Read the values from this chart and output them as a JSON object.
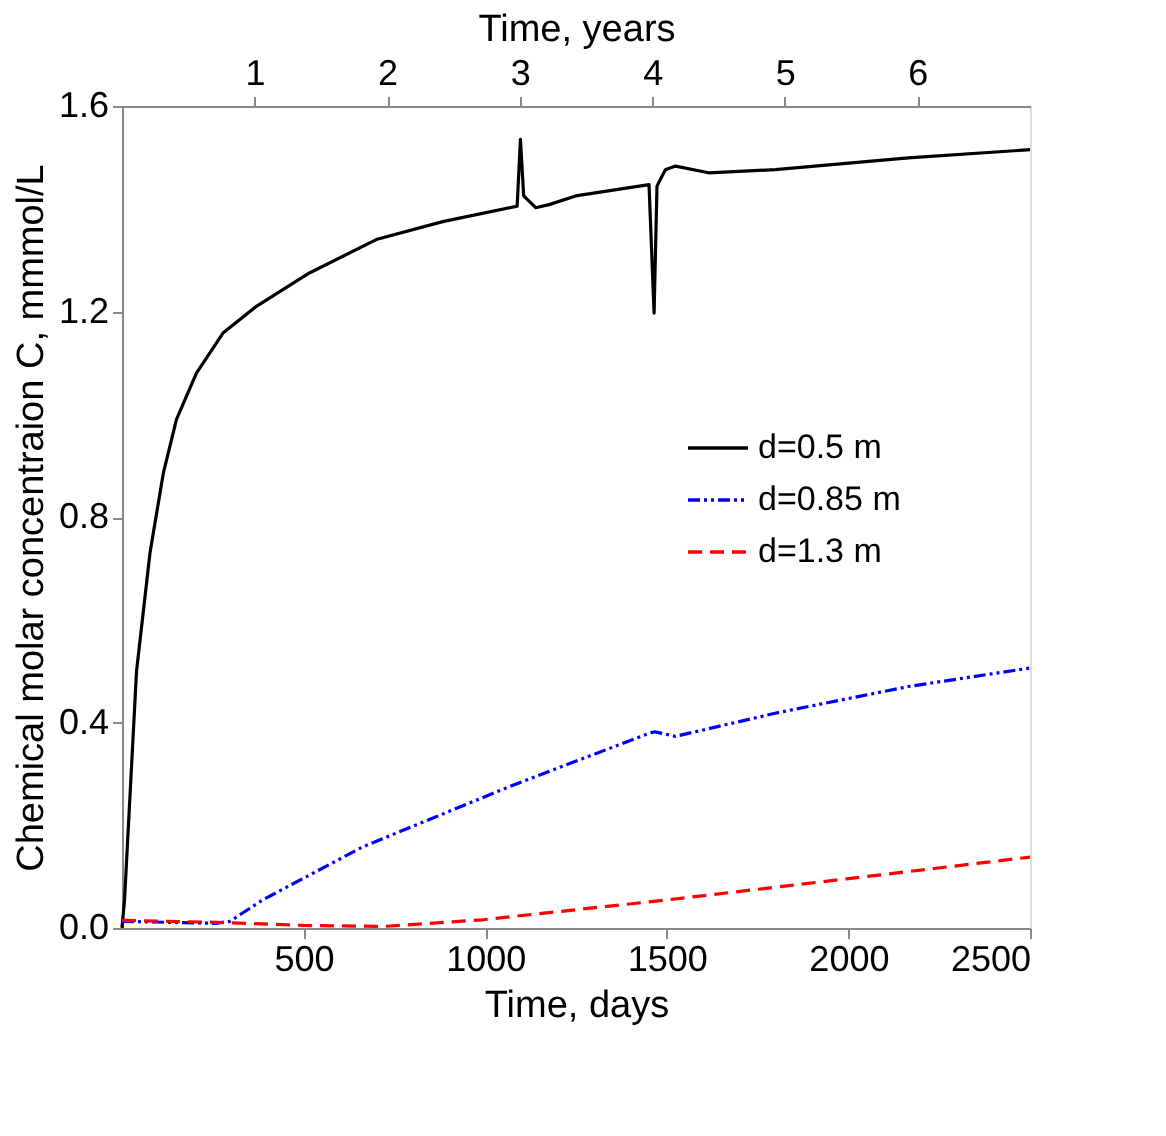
{
  "chart_data": {
    "type": "line",
    "xlabel": "Time, days",
    "ylabel": "Chemical molar concentraion C, mmmol/L",
    "x2label": "Time, years",
    "xlim": [
      0,
      2500
    ],
    "xticks": [
      500,
      1000,
      1500,
      2000,
      2500
    ],
    "x2lim": [
      0,
      6.85
    ],
    "x2ticks": [
      1,
      2,
      3,
      4,
      5,
      6
    ],
    "ylim": [
      0,
      1.6
    ],
    "yticks": [
      {
        "value": 0,
        "label": "0.0"
      },
      0.4,
      0.8,
      1.2,
      1.6
    ],
    "grid": false,
    "legend": "right",
    "marker": "none",
    "series": [
      {
        "name": "d=0.5 m",
        "color": "#000000",
        "line_style": "solid",
        "x": [
          0,
          7,
          40,
          77,
          114,
          150,
          205,
          278,
          370,
          516,
          700,
          883,
          1088,
          1097,
          1106,
          1139,
          1176,
          1249,
          1451,
          1465,
          1473,
          1496,
          1524,
          1615,
          1798,
          2165,
          2500
        ],
        "values": [
          0,
          0.055,
          0.5,
          0.73,
          0.886,
          0.99,
          1.08,
          1.158,
          1.21,
          1.275,
          1.34,
          1.375,
          1.405,
          1.535,
          1.425,
          1.402,
          1.408,
          1.425,
          1.447,
          1.197,
          1.444,
          1.476,
          1.483,
          1.47,
          1.476,
          1.499,
          1.515
        ]
      },
      {
        "name": "d=0.85 m",
        "color": "#0000ff",
        "line_style": "dotted",
        "x": [
          0,
          258,
          297,
          388,
          663,
          1066,
          1451,
          1467,
          1524,
          1798,
          2165,
          2500
        ],
        "values": [
          0.013,
          0.009,
          0.013,
          0.055,
          0.158,
          0.275,
          0.379,
          0.382,
          0.373,
          0.418,
          0.47,
          0.506
        ]
      },
      {
        "name": "d=1.3 m",
        "color": "#ff0000",
        "line_style": "dashed",
        "x": [
          0,
          258,
          500,
          718,
          993,
          1505,
          2000,
          2500
        ],
        "values": [
          0.015,
          0.011,
          0.005,
          0.003,
          0.016,
          0.055,
          0.096,
          0.138
        ]
      }
    ]
  }
}
